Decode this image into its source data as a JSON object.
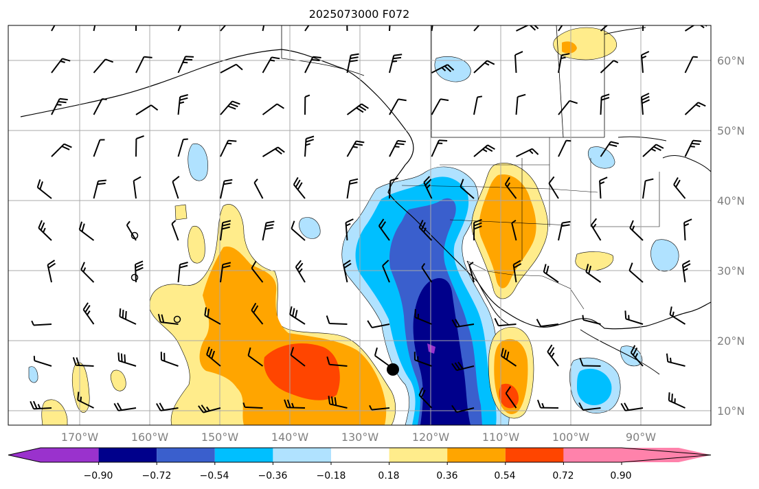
{
  "title": "2025073000 F072",
  "lon_labels": [
    "170°W",
    "160°W",
    "150°W",
    "140°W",
    "130°W",
    "120°W",
    "110°W",
    "100°W",
    "90°W"
  ],
  "lat_labels": [
    "60°N",
    "50°N",
    "40°N",
    "30°N",
    "20°N",
    "10°N"
  ],
  "colorbar": {
    "ticks": [
      "−0.90",
      "−0.72",
      "−0.54",
      "−0.36",
      "−0.18",
      "0.18",
      "0.36",
      "0.54",
      "0.72",
      "0.90"
    ],
    "colors": [
      "#9a32cd",
      "#00008b",
      "#3a5fcd",
      "#00bfff",
      "#b0e2ff",
      "#ffffff",
      "#ffec8b",
      "#ffa500",
      "#ff4500",
      "#b22222",
      "#ff82ab"
    ]
  }
}
